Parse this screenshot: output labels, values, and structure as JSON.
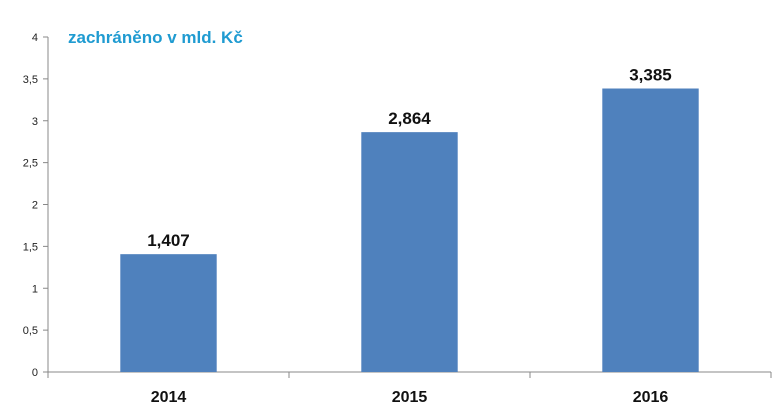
{
  "colors": {
    "bar": "#4f81bd",
    "title": "#1f9bd1",
    "axis": "#888888"
  },
  "chart_data": {
    "type": "bar",
    "title": "zachráněno v mld. Kč",
    "categories": [
      "2014",
      "2015",
      "2016"
    ],
    "values": [
      1.407,
      2.864,
      3.385
    ],
    "data_labels": [
      "1,407",
      "2,864",
      "3,385"
    ],
    "yticks": [
      0,
      0.5,
      1,
      1.5,
      2,
      2.5,
      3,
      3.5,
      4
    ],
    "ytick_labels": [
      "0",
      "0,5",
      "1",
      "1,5",
      "2",
      "2,5",
      "3",
      "3,5",
      "4"
    ],
    "ylim": [
      0,
      4
    ],
    "grid": false,
    "legend": "none"
  }
}
